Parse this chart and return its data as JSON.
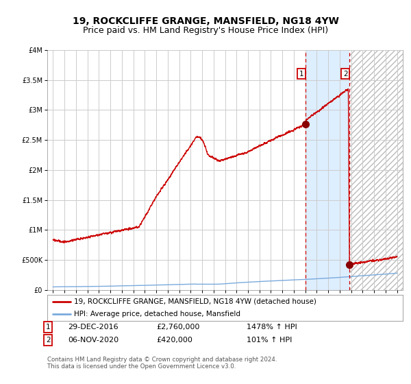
{
  "title": "19, ROCKCLIFFE GRANGE, MANSFIELD, NG18 4YW",
  "subtitle": "Price paid vs. HM Land Registry's House Price Index (HPI)",
  "legend_line1": "19, ROCKCLIFFE GRANGE, MANSFIELD, NG18 4YW (detached house)",
  "legend_line2": "HPI: Average price, detached house, Mansfield",
  "annotation1_date": "29-DEC-2016",
  "annotation1_price": "£2,760,000",
  "annotation1_hpi": "1478% ↑ HPI",
  "annotation2_date": "06-NOV-2020",
  "annotation2_price": "£420,000",
  "annotation2_hpi": "101% ↑ HPI",
  "footer": "Contains HM Land Registry data © Crown copyright and database right 2024.\nThis data is licensed under the Open Government Licence v3.0.",
  "hpi_color": "#7aaadd",
  "price_color": "#cc0000",
  "marker_color": "#880000",
  "highlight_color": "#ddeeff",
  "point1_x": 2016.99,
  "point1_y": 2760000,
  "point2_x": 2020.85,
  "point2_y": 420000,
  "vline1_x": 2016.99,
  "vline2_x": 2020.85,
  "xlim": [
    1994.5,
    2025.5
  ],
  "ylim": [
    0,
    4000000
  ],
  "yticks": [
    0,
    500000,
    1000000,
    1500000,
    2000000,
    2500000,
    3000000,
    3500000,
    4000000
  ],
  "ytick_labels": [
    "£0",
    "£500K",
    "£1M",
    "£1.5M",
    "£2M",
    "£2.5M",
    "£3M",
    "£3.5M",
    "£4M"
  ],
  "xticks": [
    1995,
    1996,
    1997,
    1998,
    1999,
    2000,
    2001,
    2002,
    2003,
    2004,
    2005,
    2006,
    2007,
    2008,
    2009,
    2010,
    2011,
    2012,
    2013,
    2014,
    2015,
    2016,
    2017,
    2018,
    2019,
    2020,
    2021,
    2022,
    2023,
    2024,
    2025
  ],
  "title_fontsize": 10,
  "subtitle_fontsize": 9,
  "tick_fontsize": 7
}
